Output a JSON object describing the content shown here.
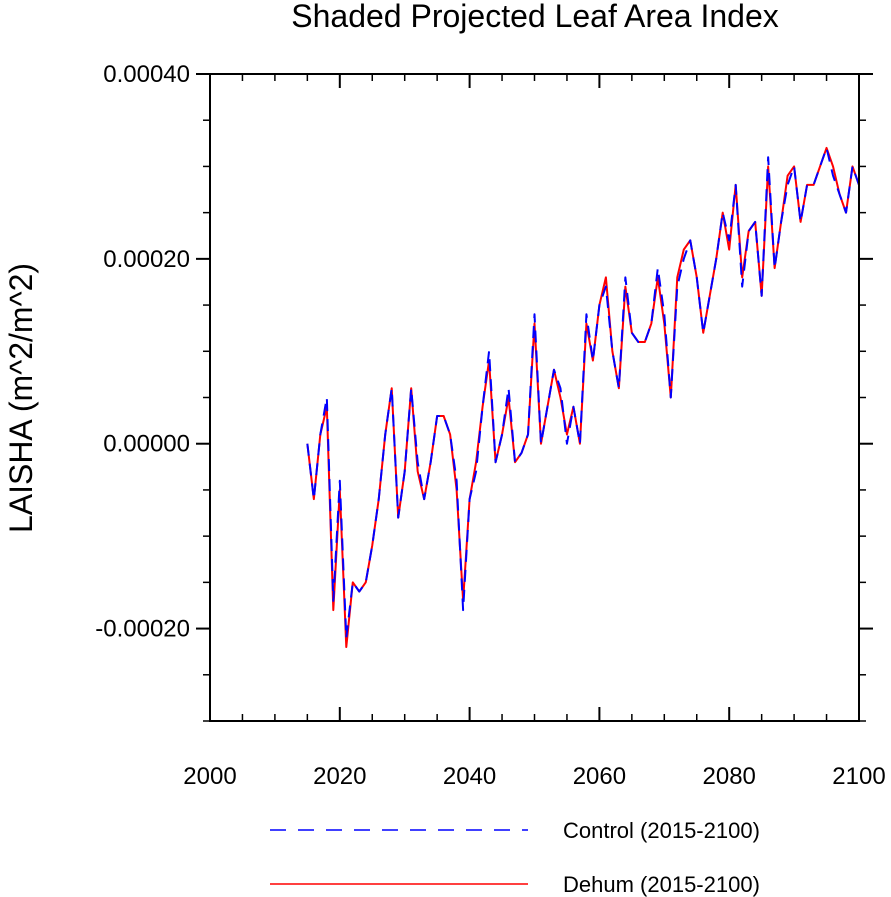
{
  "chart_data": {
    "type": "line",
    "title": "Shaded Projected Leaf Area Index",
    "xlabel": "",
    "ylabel": "LAISHA  (m^2/m^2)",
    "xlim": [
      2000,
      2100
    ],
    "ylim": [
      -0.0003,
      0.0004
    ],
    "x_ticks": [
      2000,
      2020,
      2040,
      2060,
      2080,
      2100
    ],
    "x_tick_labels": [
      "2000",
      "2020",
      "2040",
      "2060",
      "2080",
      "2100"
    ],
    "y_ticks": [
      -0.0002,
      0.0,
      0.0002,
      0.0004
    ],
    "y_tick_labels": [
      "-0.00020",
      "0.00000",
      "0.00020",
      "0.00040"
    ],
    "x": [
      2015,
      2016,
      2017,
      2018,
      2019,
      2020,
      2021,
      2022,
      2023,
      2024,
      2025,
      2026,
      2027,
      2028,
      2029,
      2030,
      2031,
      2032,
      2033,
      2034,
      2035,
      2036,
      2037,
      2038,
      2039,
      2040,
      2041,
      2042,
      2043,
      2044,
      2045,
      2046,
      2047,
      2048,
      2049,
      2050,
      2051,
      2052,
      2053,
      2054,
      2055,
      2056,
      2057,
      2058,
      2059,
      2060,
      2061,
      2062,
      2063,
      2064,
      2065,
      2066,
      2067,
      2068,
      2069,
      2070,
      2071,
      2072,
      2073,
      2074,
      2075,
      2076,
      2077,
      2078,
      2079,
      2080,
      2081,
      2082,
      2083,
      2084,
      2085,
      2086,
      2087,
      2088,
      2089,
      2090,
      2091,
      2092,
      2093,
      2094,
      2095,
      2096,
      2097,
      2098,
      2099,
      2100
    ],
    "series": [
      {
        "name": "Control (2015-2100)",
        "color": "#0000ff",
        "style": "dashed",
        "values": [
          0.0,
          -6e-05,
          1e-05,
          5e-05,
          -0.00017,
          -4e-05,
          -0.00021,
          -0.00015,
          -0.00016,
          -0.00015,
          -0.00011,
          -6e-05,
          1e-05,
          6e-05,
          -8e-05,
          -3e-05,
          6e-05,
          -2e-05,
          -6e-05,
          -2e-05,
          3e-05,
          3e-05,
          1e-05,
          -4e-05,
          -0.00018,
          -6e-05,
          -3e-05,
          4e-05,
          0.0001,
          -2e-05,
          1e-05,
          6e-05,
          -2e-05,
          -1e-05,
          1e-05,
          0.00014,
          0.0,
          4e-05,
          8e-05,
          6e-05,
          0.0,
          4e-05,
          -0.0,
          0.00014,
          9e-05,
          0.00015,
          0.00017,
          0.0001,
          6e-05,
          0.00018,
          0.00012,
          0.00011,
          0.00011,
          0.00013,
          0.00019,
          0.00014,
          5e-05,
          0.00017,
          0.0002,
          0.00022,
          0.00018,
          0.00012,
          0.00016,
          0.0002,
          0.00025,
          0.00022,
          0.00028,
          0.00017,
          0.00023,
          0.00024,
          0.00016,
          0.00031,
          0.00019,
          0.00024,
          0.00028,
          0.0003,
          0.00024,
          0.00028,
          0.00028,
          0.0003,
          0.00032,
          0.00029,
          0.00027,
          0.00025,
          0.0003,
          0.00028
        ]
      },
      {
        "name": "Dehum (2015-2100)",
        "color": "#ff0000",
        "style": "solid",
        "values": [
          0.0,
          -6e-05,
          1e-05,
          4e-05,
          -0.00018,
          -5e-05,
          -0.00022,
          -0.00015,
          -0.00016,
          -0.00015,
          -0.00011,
          -6e-05,
          1e-05,
          6e-05,
          -8e-05,
          -3e-05,
          6e-05,
          -3e-05,
          -6e-05,
          -2e-05,
          3e-05,
          3e-05,
          1e-05,
          -5e-05,
          -0.00017,
          -6e-05,
          -2e-05,
          4e-05,
          9e-05,
          -2e-05,
          1e-05,
          5e-05,
          -2e-05,
          -1e-05,
          1e-05,
          0.00013,
          -0.0,
          4e-05,
          8e-05,
          5e-05,
          1e-05,
          4e-05,
          -0.0,
          0.00013,
          9e-05,
          0.00015,
          0.00018,
          0.0001,
          6e-05,
          0.00017,
          0.00012,
          0.00011,
          0.00011,
          0.00013,
          0.00018,
          0.00013,
          5e-05,
          0.00018,
          0.00021,
          0.00022,
          0.00018,
          0.00012,
          0.00016,
          0.0002,
          0.00025,
          0.00021,
          0.00028,
          0.00018,
          0.00023,
          0.00024,
          0.00016,
          0.0003,
          0.00019,
          0.00024,
          0.00029,
          0.0003,
          0.00024,
          0.00028,
          0.00028,
          0.0003,
          0.00032,
          0.0003,
          0.00027,
          0.00025,
          0.0003,
          0.00028
        ]
      }
    ],
    "legend_position": "bottom"
  }
}
